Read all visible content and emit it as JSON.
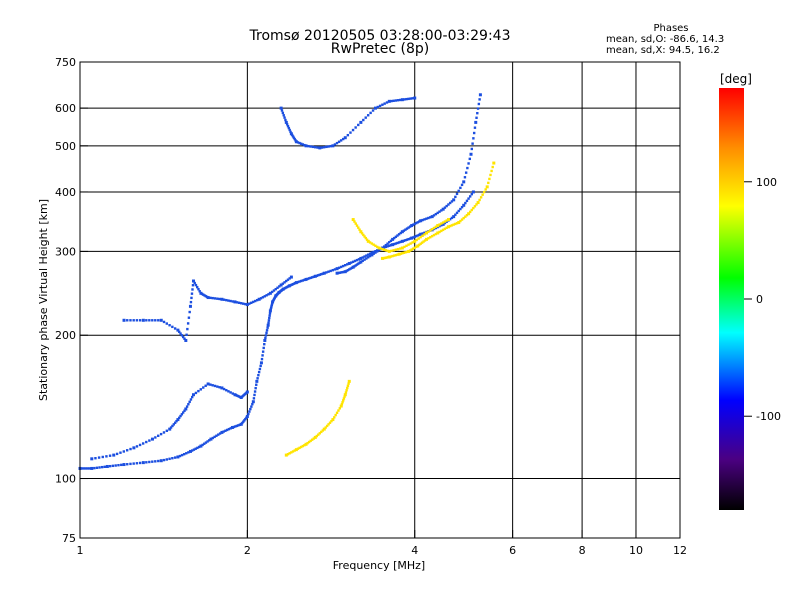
{
  "figure": {
    "title_line1": "Tromsø 20120505 03:28:00-03:29:43",
    "title_line2": "RwPretec (8p)"
  },
  "phases": {
    "heading": "Phases",
    "line_o": "mean, sd,O: -86.6, 14.3",
    "line_x": "mean, sd,X:  94.5, 16.2"
  },
  "colorbar": {
    "unit_label": "[deg]",
    "ticks": [
      {
        "value": 100,
        "label": "100"
      },
      {
        "value": 0,
        "label": "0"
      },
      {
        "value": -100,
        "label": "-100"
      }
    ],
    "range": [
      -180,
      180
    ],
    "stops": [
      {
        "offset": 0.0,
        "color": "#000000"
      },
      {
        "offset": 0.12,
        "color": "#4b0082"
      },
      {
        "offset": 0.26,
        "color": "#0000ff"
      },
      {
        "offset": 0.42,
        "color": "#00ffff"
      },
      {
        "offset": 0.55,
        "color": "#00ff00"
      },
      {
        "offset": 0.72,
        "color": "#ffff00"
      },
      {
        "offset": 0.86,
        "color": "#ff8c00"
      },
      {
        "offset": 1.0,
        "color": "#ff0000"
      }
    ]
  },
  "colors": {
    "o_trace": "#1c4fe0",
    "x_trace": "#ffe400",
    "o_light": "#2aa0d8",
    "accent_red": "#ff2a00",
    "grid": "#000000"
  },
  "chart_data": {
    "type": "scatter",
    "title": "Tromsø 20120505 03:28:00-03:29:43",
    "subtitle": "RwPretec (8p)",
    "xlabel": "Frequency [MHz]",
    "ylabel": "Stationary phase Virtual Height [km]",
    "x_scale": "log",
    "y_scale": "log",
    "xlim": [
      1,
      12
    ],
    "ylim": [
      75,
      750
    ],
    "x_ticks": [
      1,
      2,
      4,
      6,
      8,
      10,
      12
    ],
    "y_ticks": [
      75,
      100,
      200,
      300,
      400,
      500,
      600,
      750
    ],
    "x_gridlines": [
      2,
      4,
      6,
      8,
      10
    ],
    "y_gridlines": [
      100,
      200,
      300,
      400,
      500,
      600
    ],
    "series": [
      {
        "name": "O",
        "color_value": -86.6,
        "x": [
          1.0,
          1.05,
          1.12,
          1.2,
          1.3,
          1.4,
          1.5,
          1.58,
          1.65,
          1.72,
          1.8,
          1.88,
          1.95,
          2.0,
          2.05,
          2.08,
          2.12,
          2.15,
          2.18,
          2.2,
          2.22,
          2.25,
          2.28,
          2.32,
          2.38,
          2.45,
          2.55,
          2.65,
          2.75,
          2.9,
          3.05,
          3.2,
          3.35,
          3.5,
          3.65,
          3.8,
          3.95,
          4.1,
          4.3,
          4.5,
          4.7,
          4.9,
          5.1
        ],
        "y": [
          105,
          105,
          106,
          107,
          108,
          109,
          111,
          114,
          117,
          121,
          125,
          128,
          130,
          135,
          145,
          160,
          175,
          195,
          210,
          225,
          235,
          242,
          246,
          250,
          254,
          258,
          262,
          266,
          270,
          276,
          283,
          290,
          298,
          305,
          310,
          315,
          320,
          326,
          333,
          342,
          355,
          375,
          400
        ]
      },
      {
        "name": "O",
        "color_value": -86.6,
        "x": [
          1.05,
          1.15,
          1.25,
          1.35,
          1.45,
          1.5,
          1.55,
          1.6,
          1.7,
          1.8,
          1.9,
          1.95,
          2.0
        ],
        "y": [
          110,
          112,
          116,
          121,
          127,
          133,
          140,
          150,
          158,
          155,
          150,
          148,
          152
        ]
      },
      {
        "name": "O",
        "color_value": -86.6,
        "x": [
          1.2,
          1.3,
          1.4,
          1.5,
          1.55,
          1.58,
          1.6,
          1.65,
          1.7,
          1.8,
          1.9,
          2.0,
          2.1,
          2.2,
          2.3,
          2.4
        ],
        "y": [
          215,
          215,
          215,
          205,
          195,
          230,
          260,
          245,
          240,
          238,
          235,
          232,
          238,
          245,
          255,
          265
        ]
      },
      {
        "name": "O",
        "color_value": -86.6,
        "x": [
          2.3,
          2.35,
          2.4,
          2.45,
          2.55,
          2.7,
          2.85,
          3.0,
          3.2,
          3.4,
          3.6,
          3.8,
          4.0
        ],
        "y": [
          600,
          560,
          530,
          510,
          500,
          495,
          500,
          520,
          560,
          600,
          620,
          625,
          630
        ]
      },
      {
        "name": "O",
        "color_value": -86.6,
        "x": [
          2.9,
          3.0,
          3.1,
          3.2,
          3.35,
          3.5,
          3.65,
          3.8,
          3.95,
          4.1,
          4.3,
          4.5,
          4.7,
          4.9,
          5.05,
          5.15,
          5.25
        ],
        "y": [
          270,
          272,
          278,
          285,
          295,
          305,
          318,
          330,
          340,
          348,
          355,
          368,
          385,
          420,
          480,
          560,
          640
        ]
      }
    ],
    "x_series": [
      {
        "name": "X",
        "color_value": 94.5,
        "x": [
          2.35,
          2.45,
          2.55,
          2.65,
          2.75,
          2.85,
          2.95,
          3.0,
          3.05
        ],
        "y": [
          112,
          115,
          118,
          122,
          127,
          133,
          142,
          150,
          160
        ]
      },
      {
        "name": "X",
        "color_value": 94.5,
        "x": [
          3.5,
          3.6,
          3.75,
          3.9,
          4.05,
          4.2,
          4.4,
          4.6,
          4.8,
          5.0,
          5.2,
          5.4,
          5.55
        ],
        "y": [
          290,
          292,
          296,
          300,
          308,
          318,
          328,
          338,
          345,
          360,
          380,
          410,
          460
        ]
      },
      {
        "name": "X",
        "color_value": 94.5,
        "x": [
          3.1,
          3.2,
          3.3,
          3.45,
          3.6,
          3.8,
          4.0,
          4.2,
          4.4,
          4.6
        ],
        "y": [
          350,
          330,
          315,
          305,
          300,
          305,
          315,
          328,
          340,
          350
        ]
      }
    ]
  }
}
